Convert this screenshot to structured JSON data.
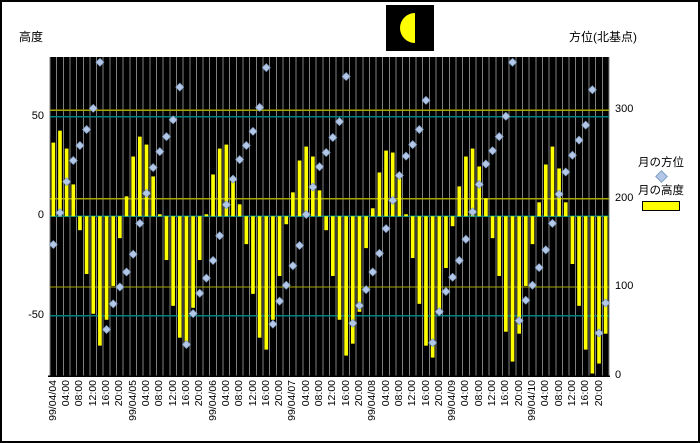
{
  "header": {
    "left_axis_title": "高度",
    "right_axis_title": "方位(北基点)",
    "moon_icon": "moon-last-quarter-icon"
  },
  "legend": {
    "azimuth_label": "月の方位",
    "altitude_label": "月の高度"
  },
  "chart_data": {
    "type": "combo-bar-scatter",
    "title": "",
    "description": "Moon altitude (bars, left axis) and azimuth from north (diamonds, right axis) every 2 hours, 1999/04/04 - 1999/04/10",
    "time_step_hours": 2,
    "points_per_label": 2,
    "x_tick_labels": [
      "99/04/04",
      "04:00",
      "08:00",
      "12:00",
      "16:00",
      "20:00",
      "99/04/05",
      "04:00",
      "08:00",
      "12:00",
      "16:00",
      "20:00",
      "99/04/06",
      "04:00",
      "08:00",
      "12:00",
      "16:00",
      "20:00",
      "99/04/07",
      "04:00",
      "08:00",
      "12:00",
      "16:00",
      "20:00",
      "99/04/08",
      "04:00",
      "08:00",
      "12:00",
      "16:00",
      "20:00",
      "99/04/09",
      "04:00",
      "08:00",
      "12:00",
      "16:00",
      "20:00",
      "99/04/10",
      "04:00",
      "08:00",
      "12:00",
      "16:00",
      "20:00"
    ],
    "left_axis": {
      "label": "高度",
      "tick_labels": [
        "50",
        "0",
        "-50"
      ],
      "tick_values": [
        50,
        0,
        -50
      ],
      "range": [
        -80,
        80
      ],
      "gridline_color": "#008080"
    },
    "right_axis": {
      "label": "方位(北基点)",
      "tick_labels": [
        "300",
        "200",
        "100",
        "0"
      ],
      "tick_values": [
        300,
        200,
        100,
        0
      ],
      "range": [
        0,
        360
      ],
      "gridline_color": "#a6a600"
    },
    "series": [
      {
        "name": "月の高度",
        "type": "bar",
        "axis": "left",
        "color": "#ffff00",
        "values": [
          37,
          43,
          34,
          16,
          -7,
          -29,
          -49,
          -65,
          -52,
          -35,
          -11,
          10,
          30,
          40,
          36,
          20,
          1,
          -22,
          -45,
          -61,
          -64,
          -46,
          -22,
          1,
          21,
          34,
          36,
          20,
          6,
          -14,
          -39,
          -61,
          -67,
          -52,
          -30,
          -4,
          12,
          28,
          35,
          30,
          13,
          -7,
          -30,
          -52,
          -70,
          -64,
          -48,
          -16,
          4,
          22,
          33,
          32,
          19,
          1,
          -21,
          -44,
          -65,
          -71,
          -48,
          -26,
          -5,
          15,
          30,
          34,
          25,
          9,
          -11,
          -30,
          -58,
          -73,
          -59,
          -35,
          -14,
          7,
          26,
          35,
          24,
          7,
          -24,
          -45,
          -67,
          -79,
          -74,
          -59
        ]
      },
      {
        "name": "月の方位",
        "type": "scatter",
        "axis": "right",
        "color": "#b4c7e7",
        "values": [
          148,
          184,
          219,
          243,
          260,
          278,
          302,
          354,
          52,
          81,
          100,
          117,
          137,
          172,
          206,
          235,
          253,
          270,
          289,
          326,
          35,
          70,
          93,
          110,
          130,
          158,
          193,
          222,
          244,
          260,
          276,
          303,
          348,
          58,
          84,
          102,
          124,
          147,
          182,
          213,
          236,
          252,
          269,
          287,
          338,
          59,
          79,
          97,
          117,
          138,
          166,
          198,
          226,
          248,
          261,
          278,
          311,
          37,
          72,
          95,
          111,
          130,
          154,
          185,
          216,
          239,
          254,
          270,
          293,
          354,
          62,
          85,
          102,
          122,
          142,
          172,
          205,
          230,
          249,
          266,
          283,
          323,
          48,
          82
        ]
      }
    ],
    "plot_style": {
      "background": "#000000",
      "vertical_gridline_color": "#7f7f7f",
      "axis_line_color": "#000000"
    }
  }
}
